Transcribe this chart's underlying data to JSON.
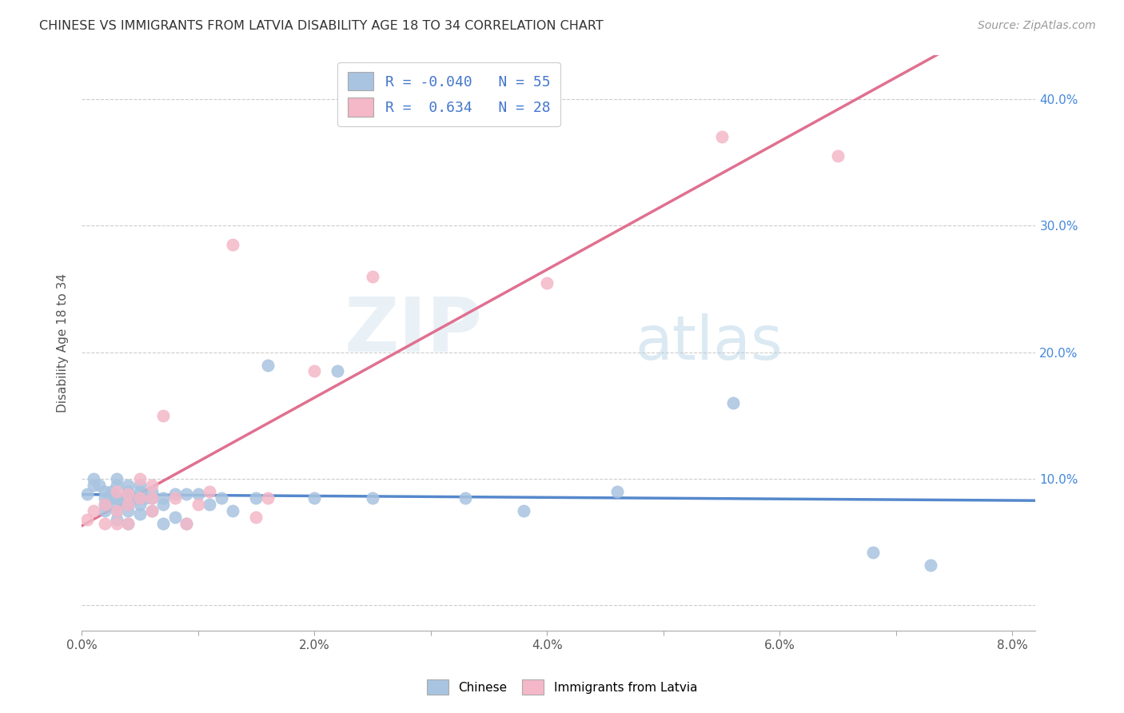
{
  "title": "CHINESE VS IMMIGRANTS FROM LATVIA DISABILITY AGE 18 TO 34 CORRELATION CHART",
  "source": "Source: ZipAtlas.com",
  "ylabel": "Disability Age 18 to 34",
  "xlim": [
    0.0,
    0.082
  ],
  "ylim": [
    -0.02,
    0.435
  ],
  "x_ticks": [
    0.0,
    0.01,
    0.02,
    0.03,
    0.04,
    0.05,
    0.06,
    0.07,
    0.08
  ],
  "x_tick_labels": [
    "0.0%",
    "",
    "2.0%",
    "",
    "4.0%",
    "",
    "6.0%",
    "",
    "8.0%"
  ],
  "y_ticks": [
    0.0,
    0.1,
    0.2,
    0.3,
    0.4
  ],
  "y_tick_labels_right": [
    "",
    "10.0%",
    "20.0%",
    "30.0%",
    "40.0%"
  ],
  "legend_r1": "R = -0.040",
  "legend_n1": "N = 55",
  "legend_r2": "R =  0.634",
  "legend_n2": "N = 28",
  "color_chinese": "#a8c4e0",
  "color_latvia": "#f4b8c8",
  "color_line_chinese": "#5588cc",
  "color_line_latvia": "#e07090",
  "watermark_zip": "ZIP",
  "watermark_atlas": "atlas",
  "chinese_x": [
    0.0005,
    0.001,
    0.001,
    0.0015,
    0.002,
    0.002,
    0.002,
    0.002,
    0.0025,
    0.0025,
    0.003,
    0.003,
    0.003,
    0.003,
    0.003,
    0.003,
    0.0035,
    0.004,
    0.004,
    0.004,
    0.004,
    0.004,
    0.004,
    0.0045,
    0.005,
    0.005,
    0.005,
    0.005,
    0.005,
    0.0055,
    0.006,
    0.006,
    0.006,
    0.007,
    0.007,
    0.007,
    0.008,
    0.008,
    0.009,
    0.009,
    0.01,
    0.011,
    0.012,
    0.013,
    0.015,
    0.016,
    0.02,
    0.022,
    0.025,
    0.033,
    0.038,
    0.046,
    0.056,
    0.068,
    0.073
  ],
  "chinese_y": [
    0.088,
    0.1,
    0.095,
    0.095,
    0.09,
    0.085,
    0.08,
    0.075,
    0.09,
    0.085,
    0.1,
    0.095,
    0.085,
    0.08,
    0.075,
    0.068,
    0.085,
    0.095,
    0.09,
    0.085,
    0.08,
    0.075,
    0.065,
    0.085,
    0.095,
    0.09,
    0.085,
    0.08,
    0.072,
    0.085,
    0.09,
    0.085,
    0.075,
    0.085,
    0.08,
    0.065,
    0.088,
    0.07,
    0.088,
    0.065,
    0.088,
    0.08,
    0.085,
    0.075,
    0.085,
    0.19,
    0.085,
    0.185,
    0.085,
    0.085,
    0.075,
    0.09,
    0.16,
    0.042,
    0.032
  ],
  "latvia_x": [
    0.0005,
    0.001,
    0.002,
    0.002,
    0.003,
    0.003,
    0.003,
    0.004,
    0.004,
    0.004,
    0.005,
    0.005,
    0.006,
    0.006,
    0.006,
    0.007,
    0.008,
    0.009,
    0.01,
    0.011,
    0.013,
    0.015,
    0.016,
    0.02,
    0.025,
    0.04,
    0.055,
    0.065
  ],
  "latvia_y": [
    0.068,
    0.075,
    0.08,
    0.065,
    0.09,
    0.075,
    0.065,
    0.088,
    0.08,
    0.065,
    0.1,
    0.085,
    0.095,
    0.085,
    0.075,
    0.15,
    0.085,
    0.065,
    0.08,
    0.09,
    0.285,
    0.07,
    0.085,
    0.185,
    0.26,
    0.255,
    0.37,
    0.355
  ],
  "background_color": "#ffffff",
  "grid_color": "#cccccc"
}
